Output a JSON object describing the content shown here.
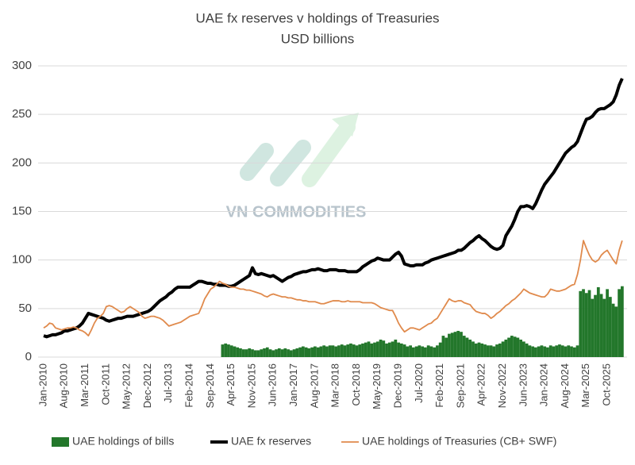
{
  "chart_data": {
    "type": "combo",
    "title": "UAE fx reserves v holdings of Treasuries",
    "subtitle": "USD billions",
    "watermark": "VN COMMODITIES",
    "categories": [
      "Jan-2010",
      null,
      null,
      null,
      null,
      null,
      null,
      "Aug-2010",
      null,
      null,
      null,
      null,
      null,
      null,
      "Mar-2011",
      null,
      null,
      null,
      null,
      null,
      null,
      "Oct-2011",
      null,
      null,
      null,
      null,
      null,
      null,
      "May-2012",
      null,
      null,
      null,
      null,
      null,
      null,
      "Dec-2012",
      null,
      null,
      null,
      null,
      null,
      null,
      "Jul-2013",
      null,
      null,
      null,
      null,
      null,
      null,
      "Feb-2014",
      null,
      null,
      null,
      null,
      null,
      null,
      "Sep-2014",
      null,
      null,
      null,
      null,
      null,
      null,
      "Apr-2015",
      null,
      null,
      null,
      null,
      null,
      null,
      "Nov-2015",
      null,
      null,
      null,
      null,
      null,
      null,
      "Jun-2016",
      null,
      null,
      null,
      null,
      null,
      null,
      "Jan-2017",
      null,
      null,
      null,
      null,
      null,
      null,
      "Aug-2017",
      null,
      null,
      null,
      null,
      null,
      null,
      "Mar-2018",
      null,
      null,
      null,
      null,
      null,
      null,
      "Oct-2018",
      null,
      null,
      null,
      null,
      null,
      null,
      "May-2019",
      null,
      null,
      null,
      null,
      null,
      null,
      "Dec-2019",
      null,
      null,
      null,
      null,
      null,
      null,
      "Jul-2020",
      null,
      null,
      null,
      null,
      null,
      null,
      "Feb-2021",
      null,
      null,
      null,
      null,
      null,
      null,
      "Sep-2021",
      null,
      null,
      null,
      null,
      null,
      null,
      "Apr-2022",
      null,
      null,
      null,
      null,
      null,
      null,
      "Nov-2022",
      null,
      null,
      null,
      null,
      null,
      null,
      "Jun-2023",
      null,
      null,
      null,
      null,
      null,
      null,
      "Jan-2024",
      null,
      null,
      null,
      null,
      null,
      null,
      "Aug-2024",
      null,
      null,
      null,
      null,
      null,
      null,
      "Mar-2025",
      null,
      null,
      null,
      null,
      null,
      null,
      "Oct-2025",
      null,
      null,
      null,
      null,
      null
    ],
    "series": [
      {
        "name": "UAE holdings of bills",
        "kind": "bar",
        "color": "#23772b",
        "values": [
          null,
          null,
          null,
          null,
          null,
          null,
          null,
          null,
          null,
          null,
          null,
          null,
          null,
          null,
          null,
          null,
          null,
          null,
          null,
          null,
          null,
          null,
          null,
          null,
          null,
          null,
          null,
          null,
          null,
          null,
          null,
          null,
          null,
          null,
          null,
          null,
          null,
          null,
          null,
          null,
          null,
          null,
          null,
          null,
          null,
          null,
          null,
          null,
          null,
          null,
          null,
          null,
          null,
          null,
          null,
          null,
          null,
          null,
          null,
          null,
          13,
          14,
          13,
          12,
          11,
          10,
          9,
          8,
          8,
          9,
          8,
          7,
          7,
          8,
          9,
          10,
          8,
          7,
          8,
          9,
          8,
          9,
          8,
          7,
          8,
          9,
          10,
          11,
          10,
          9,
          10,
          11,
          10,
          11,
          12,
          11,
          12,
          12,
          11,
          12,
          13,
          12,
          13,
          14,
          13,
          12,
          13,
          14,
          15,
          16,
          14,
          15,
          16,
          18,
          17,
          14,
          15,
          16,
          18,
          15,
          14,
          13,
          11,
          12,
          10,
          11,
          12,
          11,
          10,
          12,
          11,
          10,
          12,
          15,
          22,
          20,
          24,
          25,
          26,
          27,
          26,
          22,
          20,
          18,
          16,
          14,
          15,
          14,
          13,
          12,
          12,
          11,
          13,
          14,
          16,
          18,
          20,
          22,
          21,
          20,
          18,
          16,
          14,
          12,
          11,
          10,
          11,
          12,
          11,
          10,
          12,
          11,
          12,
          13,
          12,
          11,
          12,
          11,
          10,
          12,
          68,
          70,
          66,
          69,
          60,
          64,
          72,
          65,
          60,
          70,
          62,
          55,
          52,
          70,
          73
        ]
      },
      {
        "name": "UAE fx reserves",
        "kind": "line",
        "color": "#000000",
        "width": 4,
        "values": [
          22,
          21,
          22,
          23,
          23,
          24,
          25,
          27,
          27,
          28,
          29,
          30,
          32,
          35,
          40,
          45,
          44,
          43,
          42,
          41,
          40,
          38,
          37,
          38,
          39,
          40,
          40,
          41,
          42,
          42,
          42,
          43,
          44,
          45,
          46,
          47,
          49,
          52,
          55,
          58,
          60,
          62,
          65,
          67,
          70,
          72,
          72,
          72,
          72,
          72,
          74,
          76,
          78,
          78,
          77,
          76,
          76,
          75,
          75,
          74,
          74,
          74,
          73,
          73,
          74,
          76,
          78,
          80,
          82,
          84,
          92,
          86,
          85,
          86,
          85,
          84,
          83,
          84,
          82,
          80,
          78,
          80,
          82,
          83,
          85,
          86,
          87,
          88,
          88,
          89,
          90,
          90,
          91,
          90,
          89,
          89,
          90,
          90,
          90,
          89,
          89,
          89,
          88,
          88,
          88,
          88,
          90,
          93,
          95,
          97,
          99,
          100,
          102,
          101,
          100,
          100,
          100,
          103,
          106,
          108,
          104,
          96,
          95,
          94,
          94,
          95,
          95,
          95,
          97,
          98,
          100,
          101,
          102,
          103,
          104,
          105,
          106,
          107,
          108,
          110,
          110,
          112,
          115,
          118,
          120,
          123,
          125,
          122,
          120,
          117,
          114,
          112,
          111,
          112,
          115,
          125,
          130,
          135,
          142,
          150,
          155,
          155,
          156,
          155,
          153,
          158,
          165,
          172,
          178,
          182,
          186,
          190,
          195,
          200,
          205,
          210,
          213,
          216,
          218,
          222,
          230,
          238,
          245,
          246,
          248,
          252,
          255,
          256,
          256,
          258,
          260,
          263,
          270,
          280,
          287
        ]
      },
      {
        "name": "UAE holdings of Treasuries (CB+ SWF)",
        "kind": "line",
        "color": "#e08a4c",
        "width": 1.8,
        "values": [
          30,
          32,
          35,
          34,
          30,
          29,
          28,
          29,
          30,
          30,
          31,
          30,
          28,
          27,
          25,
          22,
          28,
          35,
          40,
          42,
          45,
          52,
          53,
          52,
          50,
          48,
          46,
          47,
          50,
          52,
          50,
          48,
          46,
          42,
          40,
          41,
          42,
          42,
          41,
          40,
          38,
          35,
          32,
          33,
          34,
          35,
          36,
          38,
          40,
          42,
          43,
          44,
          45,
          52,
          60,
          65,
          70,
          72,
          75,
          78,
          76,
          75,
          73,
          72,
          72,
          71,
          70,
          70,
          69,
          69,
          68,
          67,
          66,
          65,
          63,
          62,
          64,
          65,
          64,
          63,
          62,
          62,
          61,
          61,
          60,
          59,
          59,
          58,
          58,
          57,
          57,
          57,
          56,
          55,
          55,
          56,
          57,
          58,
          58,
          58,
          57,
          57,
          58,
          57,
          57,
          57,
          57,
          56,
          56,
          56,
          56,
          55,
          53,
          51,
          50,
          49,
          48,
          48,
          42,
          35,
          30,
          26,
          28,
          30,
          30,
          29,
          28,
          30,
          32,
          34,
          35,
          38,
          40,
          45,
          50,
          55,
          60,
          58,
          57,
          58,
          58,
          56,
          55,
          54,
          50,
          47,
          46,
          45,
          45,
          43,
          40,
          42,
          45,
          47,
          50,
          53,
          55,
          58,
          60,
          63,
          66,
          70,
          68,
          66,
          65,
          64,
          63,
          62,
          62,
          65,
          70,
          69,
          68,
          68,
          69,
          70,
          72,
          74,
          75,
          85,
          100,
          120,
          112,
          105,
          100,
          98,
          100,
          105,
          108,
          110,
          105,
          100,
          96,
          110,
          120
        ]
      }
    ],
    "ylim": [
      0,
      300
    ],
    "yticks": [
      0,
      50,
      100,
      150,
      200,
      250,
      300
    ],
    "grid": true,
    "legend": "bottom"
  }
}
